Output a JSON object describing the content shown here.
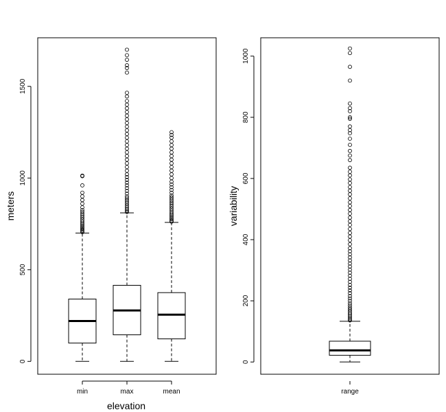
{
  "chart_data": [
    {
      "type": "boxplot",
      "title": "",
      "xlabel": "elevation",
      "ylabel": "meters",
      "ylim": [
        -70,
        1765
      ],
      "y_ticks": [
        0,
        500,
        1000,
        1500
      ],
      "y_tick_labels": [
        "0",
        "500",
        "1000",
        "1500"
      ],
      "grid": false,
      "categories": [
        "min",
        "max",
        "mean"
      ],
      "boxes": [
        {
          "name": "min",
          "whisker_low": 0,
          "q1": 100,
          "median": 220,
          "q3": 340,
          "whisker_high": 700,
          "outliers": [
            705,
            712,
            718,
            725,
            732,
            740,
            748,
            756,
            765,
            775,
            785,
            795,
            805,
            815,
            825,
            840,
            860,
            880,
            900,
            920,
            960,
            1010,
            1013
          ]
        },
        {
          "name": "max",
          "whisker_low": 0,
          "q1": 145,
          "median": 278,
          "q3": 415,
          "whisker_high": 810,
          "outliers": [
            815,
            822,
            830,
            840,
            850,
            860,
            870,
            880,
            890,
            900,
            915,
            930,
            945,
            960,
            975,
            990,
            1005,
            1020,
            1040,
            1060,
            1080,
            1100,
            1120,
            1140,
            1160,
            1180,
            1200,
            1220,
            1240,
            1260,
            1280,
            1300,
            1320,
            1340,
            1360,
            1380,
            1400,
            1420,
            1445,
            1465,
            1575,
            1600,
            1615,
            1645,
            1670,
            1700
          ]
        },
        {
          "name": "mean",
          "whisker_low": 0,
          "q1": 123,
          "median": 255,
          "q3": 375,
          "whisker_high": 758,
          "outliers": [
            762,
            768,
            775,
            782,
            790,
            798,
            806,
            815,
            825,
            835,
            845,
            855,
            865,
            875,
            885,
            895,
            905,
            920,
            935,
            950,
            965,
            980,
            1000,
            1020,
            1040,
            1060,
            1080,
            1100,
            1120,
            1140,
            1160,
            1180,
            1200,
            1220,
            1235,
            1250
          ]
        }
      ]
    },
    {
      "type": "boxplot",
      "title": "",
      "xlabel": "",
      "ylabel": "variability",
      "ylim": [
        -40,
        1060
      ],
      "y_ticks": [
        0,
        200,
        400,
        600,
        800,
        1000
      ],
      "y_tick_labels": [
        "0",
        "200",
        "400",
        "600",
        "800",
        "1000"
      ],
      "grid": false,
      "categories": [
        "range"
      ],
      "boxes": [
        {
          "name": "range",
          "whisker_low": 0,
          "q1": 22,
          "median": 38,
          "q3": 68,
          "whisker_high": 133,
          "outliers": [
            136,
            140,
            145,
            150,
            155,
            160,
            166,
            172,
            178,
            185,
            192,
            200,
            208,
            216,
            225,
            234,
            243,
            252,
            262,
            272,
            282,
            292,
            302,
            312,
            322,
            332,
            342,
            352,
            362,
            372,
            385,
            398,
            410,
            422,
            435,
            448,
            460,
            472,
            485,
            497,
            510,
            522,
            535,
            548,
            560,
            572,
            585,
            597,
            610,
            622,
            635,
            660,
            675,
            690,
            710,
            730,
            748,
            758,
            770,
            795,
            800,
            820,
            830,
            845,
            920,
            965,
            1010,
            1025
          ]
        }
      ]
    }
  ]
}
